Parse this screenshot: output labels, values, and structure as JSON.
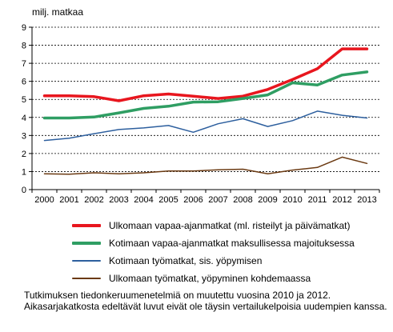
{
  "chart_data": {
    "type": "line",
    "ylabel": "milj. matkaa",
    "ylim": [
      0,
      9
    ],
    "yticks": [
      0,
      1,
      2,
      3,
      4,
      5,
      6,
      7,
      8,
      9
    ],
    "grid": true,
    "legend_position": "bottom",
    "x": [
      "2000",
      "2001",
      "2002",
      "2003",
      "2004",
      "2005",
      "2006",
      "2007",
      "2008",
      "2009",
      "2010",
      "2011",
      "2012",
      "2013"
    ],
    "series": [
      {
        "name": "Ulkomaan vapaa-ajanmatkat (ml. risteilyt ja päivämatkat)",
        "color": "#e8161e",
        "width": 3.5,
        "values": [
          5.2,
          5.2,
          5.15,
          4.92,
          5.2,
          5.3,
          5.18,
          5.05,
          5.18,
          5.55,
          6.1,
          6.7,
          7.8,
          7.8
        ]
      },
      {
        "name": "Kotimaan vapaa-ajanmatkat maksullisessa majoituksessa",
        "color": "#2f9e63",
        "width": 3.5,
        "values": [
          3.97,
          3.97,
          4.02,
          4.25,
          4.5,
          4.62,
          4.85,
          4.87,
          5.05,
          5.25,
          5.92,
          5.8,
          6.35,
          6.52
        ]
      },
      {
        "name": "Kotimaan työmatkat, sis. yöpymisen",
        "color": "#2d5f9e",
        "width": 1.5,
        "values": [
          2.72,
          2.85,
          3.1,
          3.33,
          3.42,
          3.55,
          3.18,
          3.65,
          3.93,
          3.5,
          3.82,
          4.35,
          4.12,
          3.97
        ]
      },
      {
        "name": "Ulkomaan työmatkat, yöpyminen kohdemaassa",
        "color": "#6b3a12",
        "width": 1.5,
        "values": [
          0.88,
          0.85,
          0.93,
          0.88,
          0.93,
          1.03,
          1.03,
          1.1,
          1.13,
          0.88,
          1.08,
          1.23,
          1.8,
          1.45
        ]
      }
    ]
  },
  "notes": [
    "Tutkimuksen tiedonkeruumenetelmiä on muutettu vuosina 2010 ja 2012.",
    "Aikasarjakatkosta edeltävät luvut eivät ole täysin vertailukelpoisia uudempien kanssa."
  ]
}
